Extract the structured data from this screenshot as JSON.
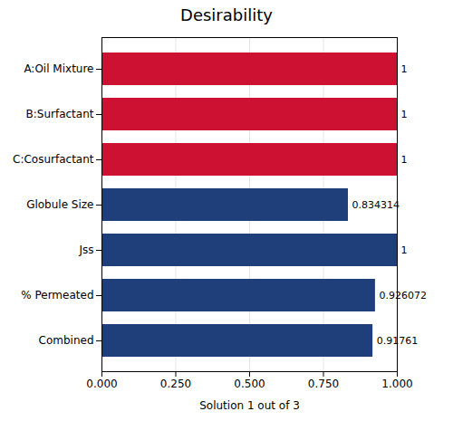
{
  "chart_data": {
    "type": "bar",
    "orientation": "horizontal",
    "title": "Desirability",
    "xlabel": "Solution 1 out of 3",
    "categories": [
      "A:Oil Mixture",
      "B:Surfactant",
      "C:Cosurfactant",
      "Globule Size",
      "Jss",
      "% Permeated",
      "Combined"
    ],
    "values": [
      1.0,
      1.0,
      1.0,
      0.834314,
      1.0,
      0.926072,
      0.91761
    ],
    "colors": [
      "#cc1133",
      "#cc1133",
      "#cc1133",
      "#1e3f7a",
      "#1e3f7a",
      "#1e3f7a",
      "#1e3f7a"
    ],
    "xlim": [
      0.0,
      1.0
    ],
    "xticks": [
      {
        "value": 0.0,
        "label": "0.000"
      },
      {
        "value": 0.25,
        "label": "0.250"
      },
      {
        "value": 0.5,
        "label": "0.500"
      },
      {
        "value": 0.75,
        "label": "0.750"
      },
      {
        "value": 1.0,
        "label": "1.000"
      }
    ],
    "grid": true,
    "data_labels": true
  }
}
